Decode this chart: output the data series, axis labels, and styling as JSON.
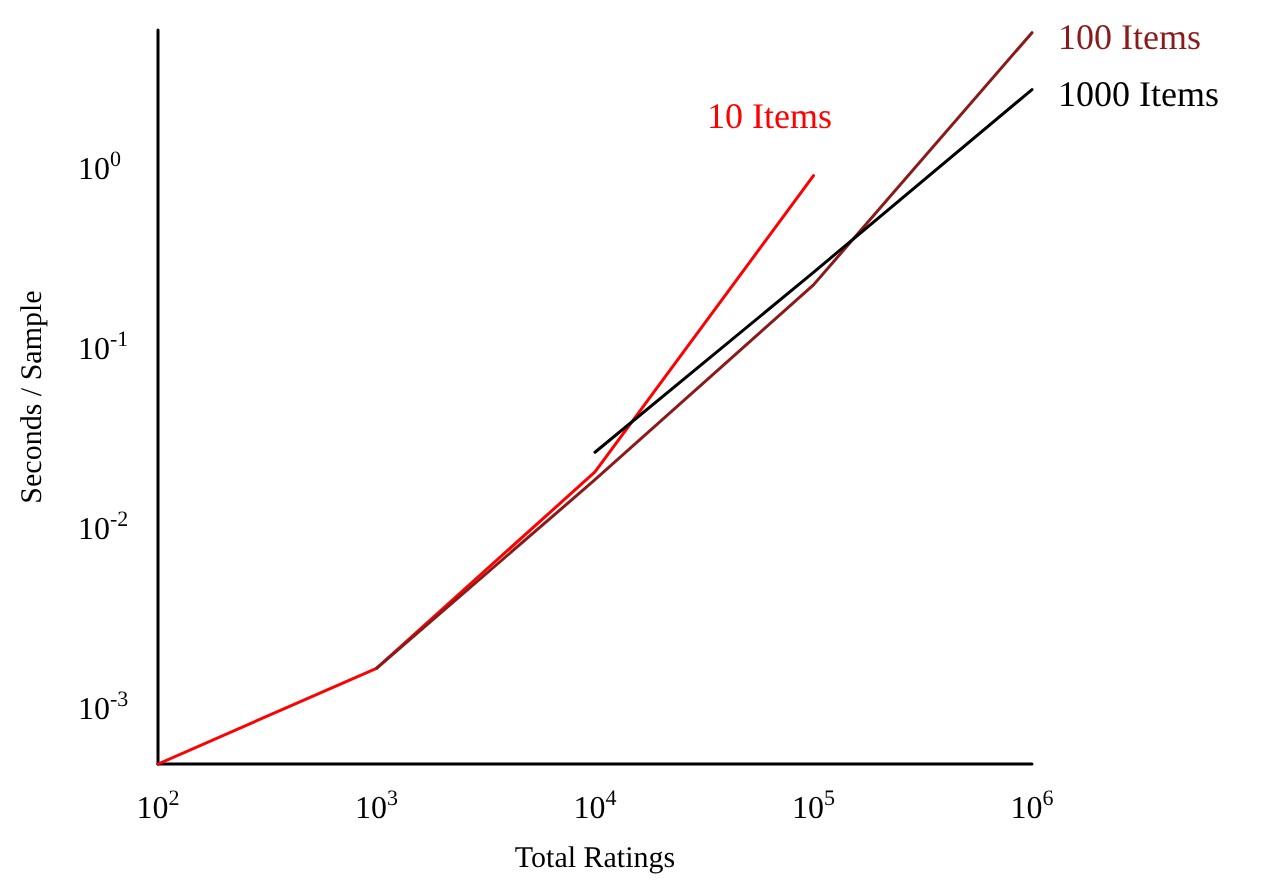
{
  "chart_data": {
    "type": "line",
    "xlabel": "Total Ratings",
    "ylabel": "Seconds / Sample",
    "log": "xy",
    "grid": false,
    "legend": false,
    "marker": "none",
    "line_style": "solid",
    "xlim": [
      100,
      1000000
    ],
    "ylim": [
      0.0005,
      6
    ],
    "xticks": [
      {
        "value": 100,
        "label": "10$^{2}$"
      },
      {
        "value": 1000,
        "label": "10$^{3}$"
      },
      {
        "value": 10000,
        "label": "10$^{4}$"
      },
      {
        "value": 100000,
        "label": "10$^{5}$"
      },
      {
        "value": 1000000,
        "label": "10$^{6}$"
      }
    ],
    "yticks": [
      {
        "value": 0.001,
        "label": "10$^{-3}$"
      },
      {
        "value": 0.01,
        "label": "10$^{-2}$"
      },
      {
        "value": 0.1,
        "label": "10$^{-1}$"
      },
      {
        "value": 1,
        "label": "10$^{0}$"
      }
    ],
    "series": [
      {
        "name": "10 Items",
        "color": "#ff0000",
        "x": [
          100,
          1000,
          10000,
          100000
        ],
        "values": [
          0.0005,
          0.0017,
          0.021,
          0.93
        ]
      },
      {
        "name": "100 Items",
        "color": "#8b1a1a",
        "x": [
          1000,
          10000,
          100000,
          1000000
        ],
        "values": [
          0.0017,
          0.019,
          0.23,
          5.8
        ]
      },
      {
        "name": "1000 Items",
        "color": "#000000",
        "x": [
          10000,
          100000,
          1000000
        ],
        "values": [
          0.027,
          0.27,
          2.8
        ]
      }
    ]
  }
}
